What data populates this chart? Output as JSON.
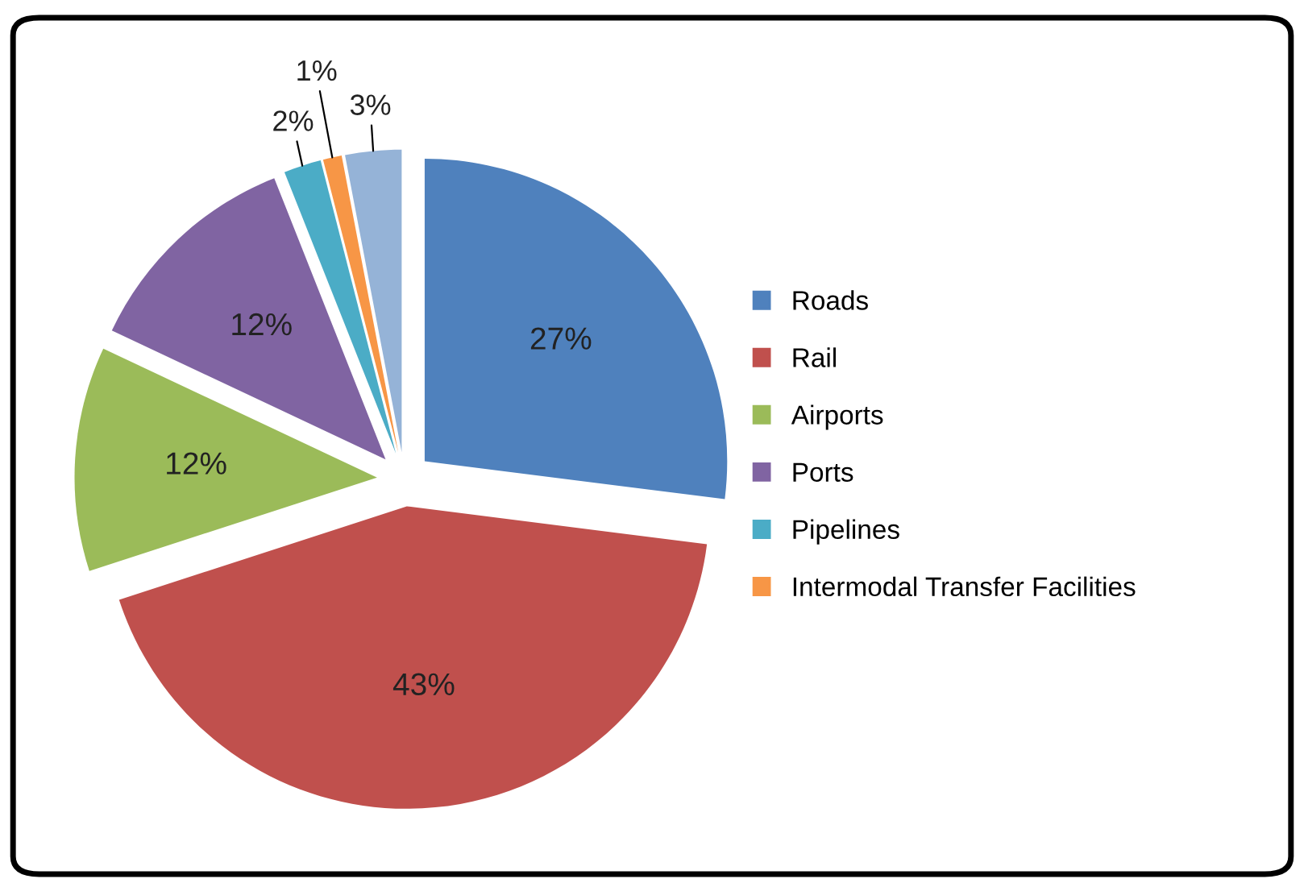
{
  "chart_data": {
    "type": "pie",
    "categories": [
      "Roads",
      "Rail",
      "Airports",
      "Ports",
      "Pipelines",
      "Intermodal Transfer Facilities",
      null
    ],
    "values": [
      27,
      43,
      12,
      12,
      2,
      1,
      3
    ],
    "colors": [
      "#4f81bd",
      "#c0504d",
      "#9bbb59",
      "#8064a2",
      "#4bacc6",
      "#f79646",
      "#95b3d7"
    ],
    "value_labels": [
      "27%",
      "43%",
      "12%",
      "12%",
      "2%",
      "1%",
      "3%"
    ],
    "legend": "right"
  }
}
